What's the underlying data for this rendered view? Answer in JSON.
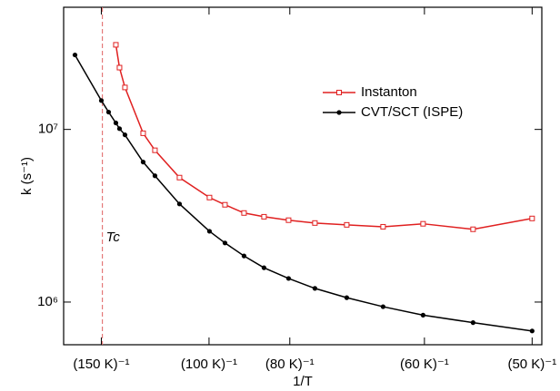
{
  "chart_data": {
    "type": "line",
    "xlabel": "1/T",
    "ylabel": "k (s⁻¹)",
    "log_y": true,
    "xlim": [
      0.0055,
      0.0203
    ],
    "ylim": [
      566000,
      51000000
    ],
    "xticks": [
      {
        "value": 0.0066667,
        "label": "(150 K)⁻¹"
      },
      {
        "value": 0.01,
        "label": "(100 K)⁻¹"
      },
      {
        "value": 0.0125,
        "label": "(80 K)⁻¹"
      },
      {
        "value": 0.0166667,
        "label": "(60 K)⁻¹"
      },
      {
        "value": 0.02,
        "label": "(50 K)⁻¹"
      }
    ],
    "yticks": [
      {
        "value": 1000000,
        "label": "10⁶"
      },
      {
        "value": 10000000,
        "label": "10⁷"
      }
    ],
    "legend_position": "right",
    "tc_line": {
      "x": 0.0067,
      "label": "Tc",
      "color": "#e06060"
    },
    "series": [
      {
        "name": "Instanton",
        "color": "#e02020",
        "marker": "square",
        "x": [
          0.007117,
          0.007229,
          0.007398,
          0.007961,
          0.008326,
          0.009086,
          0.010014,
          0.010493,
          0.011083,
          0.011702,
          0.012462,
          0.013277,
          0.014262,
          0.015387,
          0.016625,
          0.018172,
          0.02
        ],
        "values": [
          30900000,
          22800000,
          17500000,
          9500000,
          7570000,
          5260000,
          4030000,
          3660000,
          3280000,
          3120000,
          2980000,
          2870000,
          2800000,
          2730000,
          2840000,
          2640000,
          3050000
        ]
      },
      {
        "name": "CVT/SCT (ISPE)",
        "color": "#000000",
        "marker": "circle",
        "x": [
          0.005851,
          0.006667,
          0.006892,
          0.007117,
          0.007229,
          0.007398,
          0.007961,
          0.008326,
          0.009086,
          0.010014,
          0.010493,
          0.011083,
          0.011702,
          0.012462,
          0.013277,
          0.014262,
          0.015387,
          0.016625,
          0.018172,
          0.02
        ],
        "values": [
          27000000,
          14700000,
          12600000,
          10900000,
          10100000,
          9300000,
          6470000,
          5390000,
          3700000,
          2570000,
          2200000,
          1850000,
          1580000,
          1370000,
          1200000,
          1060000,
          940000,
          840000,
          760000,
          680000
        ]
      }
    ]
  }
}
